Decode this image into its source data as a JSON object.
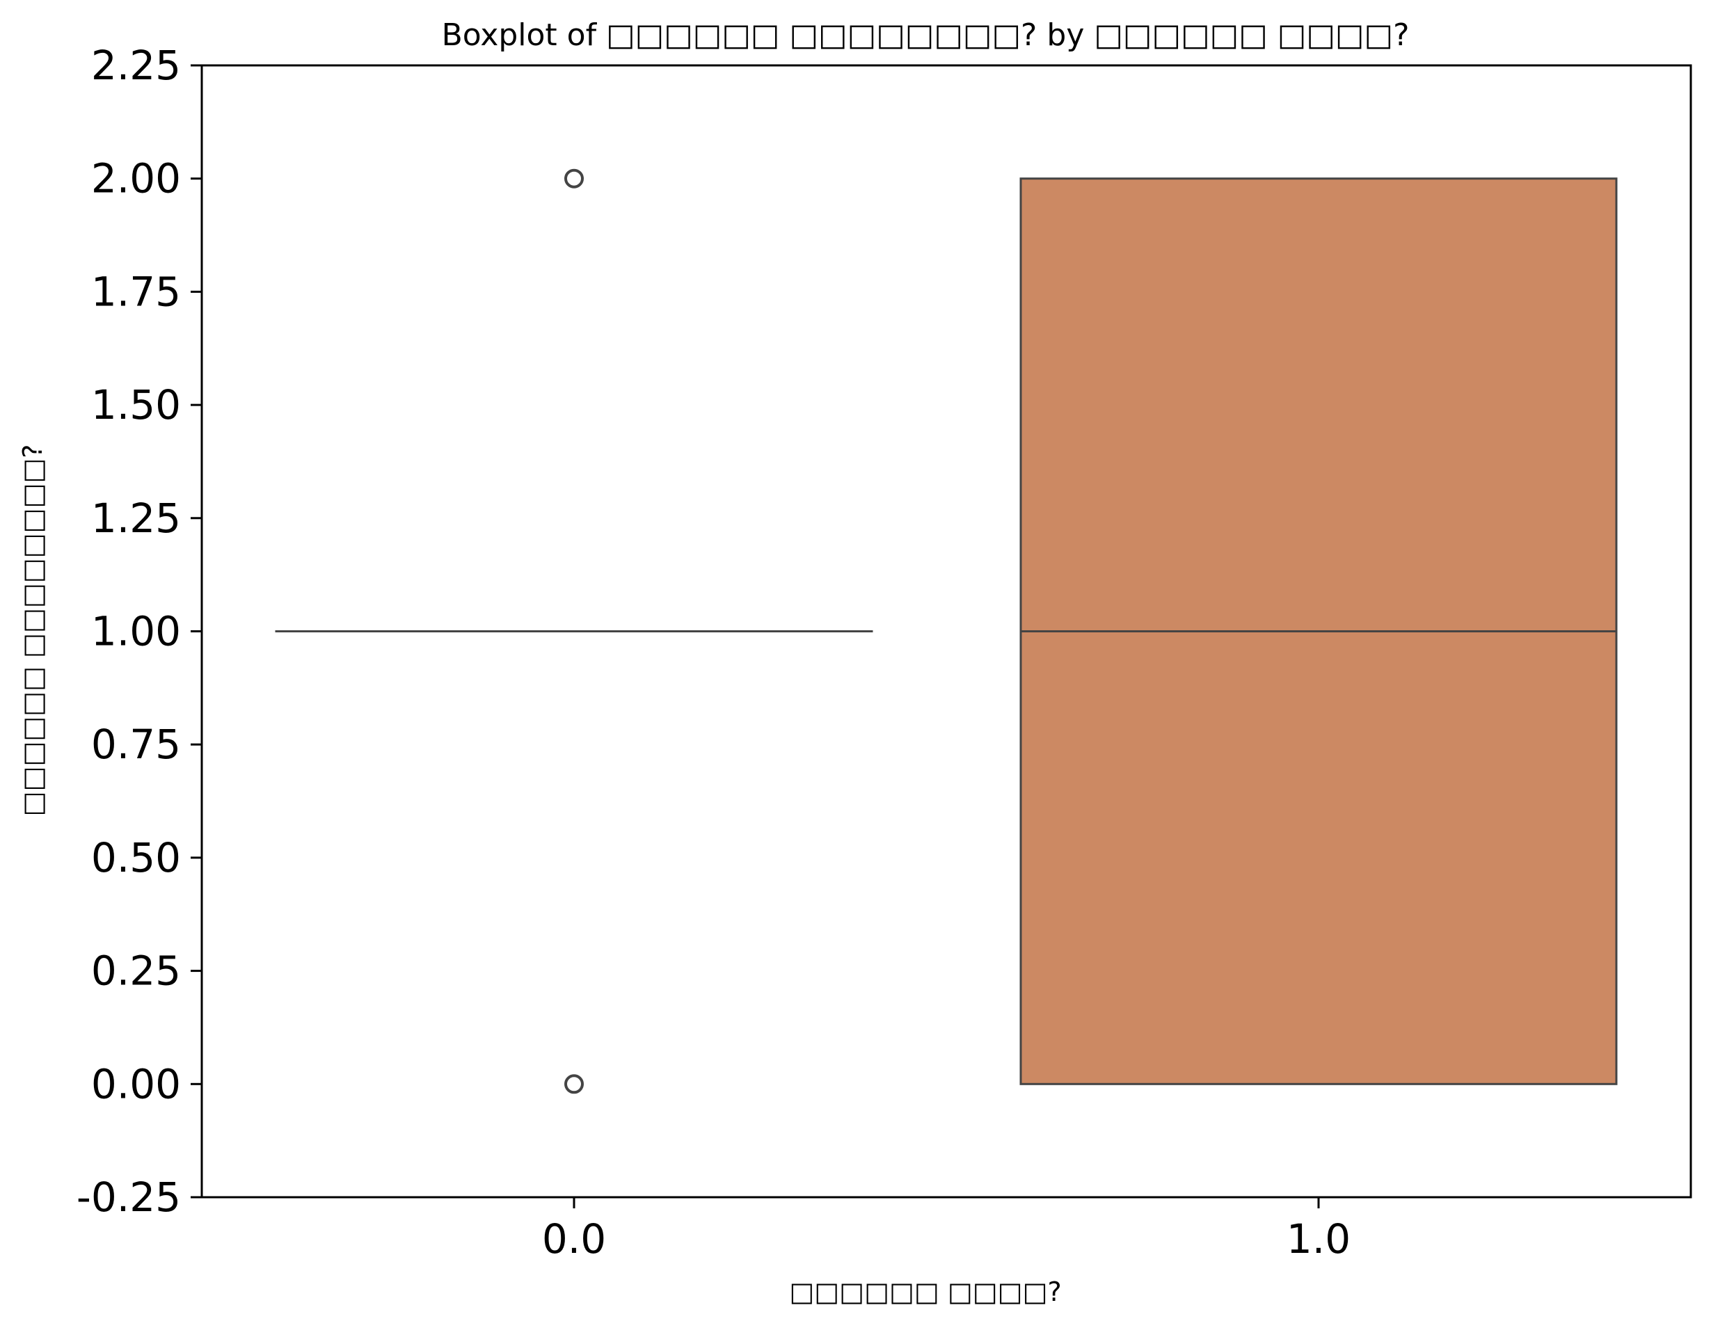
{
  "chart_data": {
    "type": "box",
    "title": "Boxplot of □□□□□□ □□□□□□□□? by □□□□□□ □□□□?",
    "xlabel": "□□□□□□ □□□□?",
    "ylabel": "□□□□□□ □□□□□□□□?",
    "ylim": [
      -0.25,
      2.25
    ],
    "yticks": [
      "-0.25",
      "0.00",
      "0.25",
      "0.50",
      "0.75",
      "1.00",
      "1.25",
      "1.50",
      "1.75",
      "2.00",
      "2.25"
    ],
    "categories": [
      "0.0",
      "1.0"
    ],
    "boxes": [
      {
        "category": "0.0",
        "whisker_low": 1.0,
        "q1": 1.0,
        "median": 1.0,
        "q3": 1.0,
        "whisker_high": 1.0,
        "outliers": [
          0.0,
          2.0
        ],
        "color": "#ffffff"
      },
      {
        "category": "1.0",
        "whisker_low": 0.0,
        "q1": 0.0,
        "median": 1.0,
        "q3": 2.0,
        "whisker_high": 2.0,
        "outliers": [],
        "color": "#cc8963"
      }
    ],
    "grid": false,
    "colors": {
      "box_edge": "#444444",
      "axis": "#000000"
    }
  }
}
